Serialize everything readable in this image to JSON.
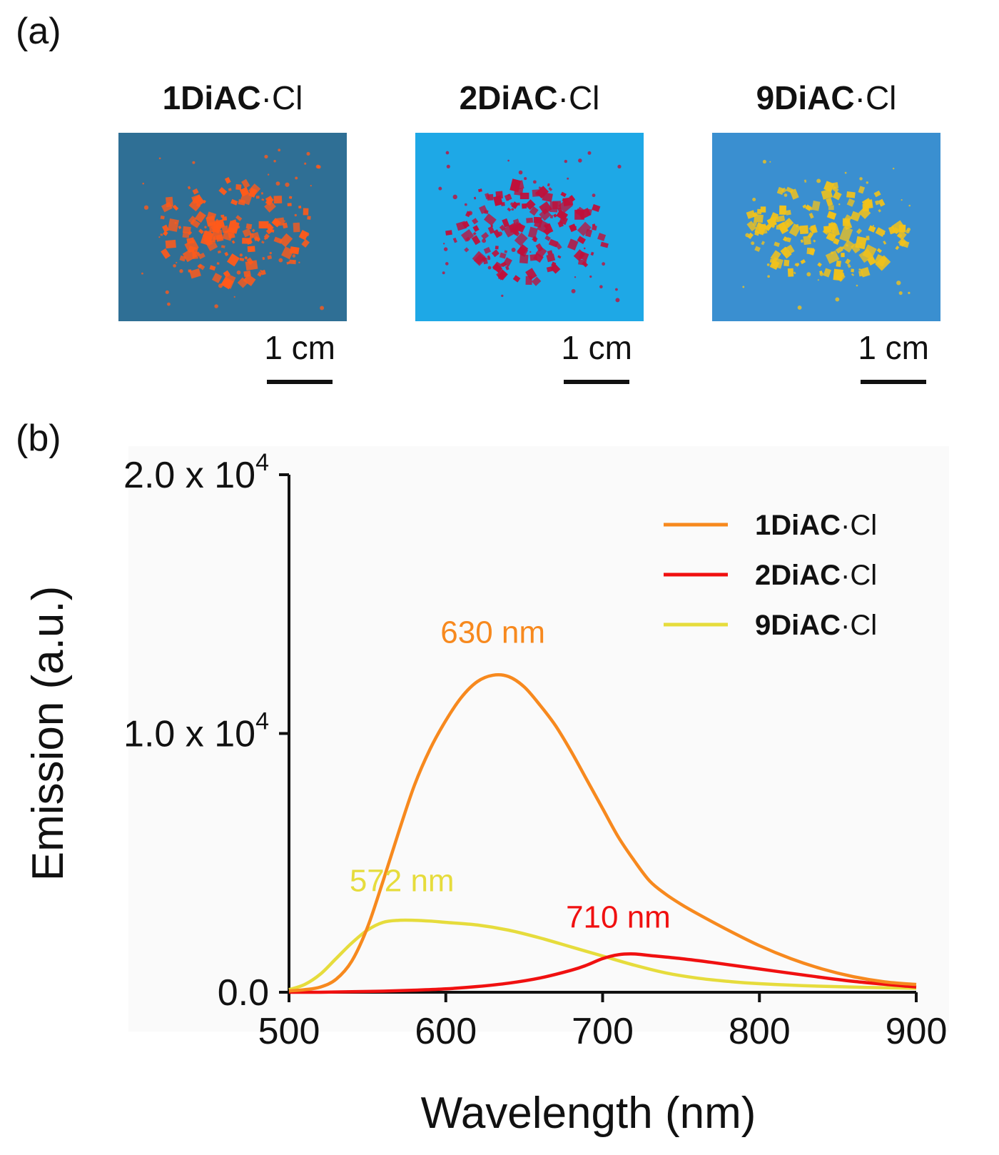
{
  "panel_a": {
    "label": "(a)",
    "samples": [
      {
        "name_bold": "1DiAC",
        "name_suffix": "·Cl",
        "scale_label": "1 cm",
        "powder_color": "#ff5a1a",
        "background_color": "#2f6f95"
      },
      {
        "name_bold": "2DiAC",
        "name_suffix": "·Cl",
        "scale_label": "1 cm",
        "powder_color": "#c0103a",
        "background_color": "#1ea8e6"
      },
      {
        "name_bold": "9DiAC",
        "name_suffix": "·Cl",
        "scale_label": "1 cm",
        "powder_color": "#f2c21a",
        "background_color": "#3a8fd0"
      }
    ]
  },
  "panel_b": {
    "label": "(b)"
  },
  "chart_data": {
    "type": "line",
    "title": "",
    "xlabel": "Wavelength (nm)",
    "ylabel": "Emission (a.u.)",
    "xlim": [
      500,
      900
    ],
    "ylim": [
      0,
      20000
    ],
    "xticks": [
      500,
      600,
      700,
      800,
      900
    ],
    "xtick_labels": [
      "500",
      "600",
      "700",
      "800",
      "900"
    ],
    "yticks": [
      0,
      10000,
      20000
    ],
    "ytick_labels": [
      {
        "mantissa": "0.0",
        "exp": ""
      },
      {
        "mantissa": "1.0 x 10",
        "exp": "4"
      },
      {
        "mantissa": "2.0 x 10",
        "exp": "4"
      }
    ],
    "grid": false,
    "legend_position": "top-right",
    "series": [
      {
        "name_bold": "1DiAC",
        "name_suffix": "·Cl",
        "color": "#f7891e",
        "x": [
          500,
          510,
          520,
          530,
          540,
          550,
          560,
          570,
          580,
          590,
          600,
          610,
          620,
          630,
          640,
          650,
          660,
          670,
          680,
          690,
          700,
          710,
          720,
          730,
          740,
          750,
          760,
          780,
          800,
          820,
          840,
          860,
          880,
          900
        ],
        "y": [
          50,
          100,
          200,
          500,
          1200,
          2500,
          4300,
          6200,
          8000,
          9400,
          10500,
          11400,
          12000,
          12250,
          12200,
          11800,
          11100,
          10300,
          9300,
          8200,
          7100,
          6000,
          5100,
          4300,
          3800,
          3400,
          3050,
          2400,
          1800,
          1300,
          900,
          600,
          400,
          300
        ]
      },
      {
        "name_bold": "2DiAC",
        "name_suffix": "·Cl",
        "color": "#f01010",
        "x": [
          500,
          520,
          540,
          560,
          580,
          600,
          620,
          640,
          660,
          680,
          690,
          700,
          710,
          720,
          730,
          750,
          770,
          800,
          830,
          860,
          900
        ],
        "y": [
          0,
          0,
          20,
          40,
          80,
          130,
          220,
          350,
          550,
          850,
          1050,
          1300,
          1450,
          1480,
          1420,
          1300,
          1150,
          900,
          650,
          420,
          200
        ]
      },
      {
        "name_bold": "9DiAC",
        "name_suffix": "·Cl",
        "color": "#e6dc3c",
        "x": [
          500,
          510,
          520,
          530,
          540,
          550,
          560,
          570,
          580,
          590,
          600,
          620,
          640,
          660,
          680,
          700,
          720,
          740,
          760,
          780,
          800,
          840,
          900
        ],
        "y": [
          100,
          300,
          700,
          1300,
          1900,
          2400,
          2700,
          2780,
          2780,
          2750,
          2700,
          2600,
          2400,
          2100,
          1750,
          1400,
          1050,
          750,
          550,
          420,
          330,
          230,
          150
        ]
      }
    ],
    "annotations": [
      {
        "text": "630 nm",
        "x": 630,
        "y": 13500,
        "color": "#f7891e"
      },
      {
        "text": "572 nm",
        "x": 572,
        "y": 3900,
        "color": "#e6dc3c"
      },
      {
        "text": "710 nm",
        "x": 710,
        "y": 2500,
        "color": "#f01010"
      }
    ]
  }
}
